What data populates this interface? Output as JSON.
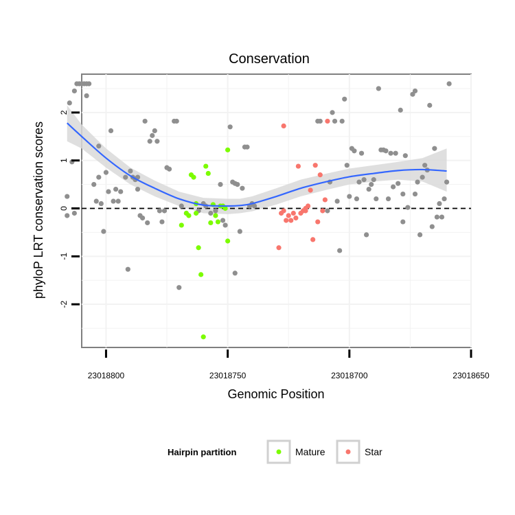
{
  "chart_data": {
    "type": "scatter",
    "title": "Conservation",
    "xlabel": "Genomic Position",
    "ylabel": "phyloP LRT conservation scores",
    "x_reversed": true,
    "xlim": [
      23018650,
      23018810
    ],
    "ylim": [
      -2.9,
      2.8
    ],
    "x_ticks": [
      23018800,
      23018750,
      23018700,
      23018650
    ],
    "x_tick_labels": [
      "23018800",
      "23018750",
      "23018700",
      "23018650"
    ],
    "y_ticks": [
      -2,
      -1,
      0,
      1,
      2
    ],
    "y_tick_labels": [
      "-2",
      "-1",
      "0",
      "1",
      "2"
    ],
    "reference_line": {
      "y": 0,
      "style": "dashed"
    },
    "grid": true,
    "legend": {
      "title": "Hairpin partition",
      "position": "bottom",
      "entries": [
        {
          "label": "Mature",
          "color": "#7cfc00"
        },
        {
          "label": "Star",
          "color": "#f8766d"
        }
      ]
    },
    "colors": {
      "other": "#8f8f8f",
      "Mature": "#7cfc00",
      "Star": "#f8766d",
      "smooth": "#3366ff",
      "ribbon": "#d9d9d9"
    },
    "series": [
      {
        "group": "other",
        "points": [
          [
            23018816,
            -0.15
          ],
          [
            23018816,
            0.25
          ],
          [
            23018815,
            2.2
          ],
          [
            23018814,
            0.97
          ],
          [
            23018813,
            2.45
          ],
          [
            23018813,
            -0.1
          ],
          [
            23018812,
            2.6
          ],
          [
            23018811,
            2.6
          ],
          [
            23018810,
            2.6
          ],
          [
            23018809,
            2.6
          ],
          [
            23018808,
            2.35
          ],
          [
            23018808,
            2.6
          ],
          [
            23018807,
            2.6
          ],
          [
            23018805,
            0.5
          ],
          [
            23018804,
            0.15
          ],
          [
            23018803,
            1.3
          ],
          [
            23018803,
            0.65
          ],
          [
            23018802,
            0.1
          ],
          [
            23018801,
            -0.48
          ],
          [
            23018800,
            0.75
          ],
          [
            23018799,
            0.35
          ],
          [
            23018798,
            1.62
          ],
          [
            23018797,
            0.15
          ],
          [
            23018796,
            0.4
          ],
          [
            23018795,
            0.15
          ],
          [
            23018794,
            0.35
          ],
          [
            23018792,
            0.65
          ],
          [
            23018791,
            -1.27
          ],
          [
            23018790,
            0.78
          ],
          [
            23018789,
            0.65
          ],
          [
            23018788,
            0.6
          ],
          [
            23018787,
            0.4
          ],
          [
            23018787,
            0.65
          ],
          [
            23018786,
            -0.15
          ],
          [
            23018785,
            -0.2
          ],
          [
            23018784,
            1.82
          ],
          [
            23018783,
            -0.3
          ],
          [
            23018782,
            1.4
          ],
          [
            23018781,
            1.52
          ],
          [
            23018780,
            1.62
          ],
          [
            23018779,
            1.4
          ],
          [
            23018778,
            -0.05
          ],
          [
            23018777,
            -0.28
          ],
          [
            23018776,
            -0.05
          ],
          [
            23018775,
            0.85
          ],
          [
            23018774,
            0.82
          ],
          [
            23018772,
            1.82
          ],
          [
            23018771,
            1.82
          ],
          [
            23018770,
            -1.65
          ],
          [
            23018769,
            0.05
          ],
          [
            23018767,
            -0.1
          ],
          [
            23018762,
            -0.05
          ],
          [
            23018760,
            0.1
          ],
          [
            23018759,
            0.05
          ],
          [
            23018757,
            -0.1
          ],
          [
            23018755,
            -0.05
          ],
          [
            23018753,
            0.5
          ],
          [
            23018752,
            -0.25
          ],
          [
            23018751,
            -0.35
          ],
          [
            23018749,
            1.7
          ],
          [
            23018748,
            0.55
          ],
          [
            23018747,
            -1.35
          ],
          [
            23018747,
            0.52
          ],
          [
            23018746,
            0.5
          ],
          [
            23018745,
            -0.48
          ],
          [
            23018744,
            0.42
          ],
          [
            23018743,
            1.28
          ],
          [
            23018742,
            1.28
          ],
          [
            23018741,
            0.05
          ],
          [
            23018740,
            0.1
          ],
          [
            23018739,
            0.05
          ],
          [
            23018713,
            1.82
          ],
          [
            23018712,
            1.82
          ],
          [
            23018709,
            -0.05
          ],
          [
            23018708,
            0.55
          ],
          [
            23018707,
            2.0
          ],
          [
            23018706,
            1.82
          ],
          [
            23018705,
            0.15
          ],
          [
            23018704,
            -0.88
          ],
          [
            23018703,
            1.82
          ],
          [
            23018702,
            2.28
          ],
          [
            23018701,
            0.9
          ],
          [
            23018700,
            0.25
          ],
          [
            23018699,
            1.25
          ],
          [
            23018698,
            1.2
          ],
          [
            23018697,
            0.2
          ],
          [
            23018696,
            0.55
          ],
          [
            23018695,
            1.15
          ],
          [
            23018694,
            0.6
          ],
          [
            23018693,
            -0.55
          ],
          [
            23018692,
            0.4
          ],
          [
            23018691,
            0.5
          ],
          [
            23018690,
            0.6
          ],
          [
            23018689,
            0.2
          ],
          [
            23018688,
            2.5
          ],
          [
            23018687,
            1.22
          ],
          [
            23018686,
            1.22
          ],
          [
            23018685,
            1.2
          ],
          [
            23018684,
            0.2
          ],
          [
            23018683,
            1.15
          ],
          [
            23018682,
            0.45
          ],
          [
            23018681,
            1.15
          ],
          [
            23018680,
            0.52
          ],
          [
            23018679,
            2.05
          ],
          [
            23018678,
            -0.28
          ],
          [
            23018678,
            0.3
          ],
          [
            23018677,
            1.1
          ],
          [
            23018676,
            0.02
          ],
          [
            23018674,
            2.38
          ],
          [
            23018673,
            2.45
          ],
          [
            23018673,
            0.3
          ],
          [
            23018672,
            0.55
          ],
          [
            23018671,
            -0.55
          ],
          [
            23018670,
            0.65
          ],
          [
            23018669,
            0.9
          ],
          [
            23018668,
            0.8
          ],
          [
            23018667,
            2.15
          ],
          [
            23018666,
            -0.38
          ],
          [
            23018665,
            1.25
          ],
          [
            23018664,
            -0.18
          ],
          [
            23018663,
            0.1
          ],
          [
            23018662,
            -0.18
          ],
          [
            23018661,
            0.2
          ],
          [
            23018660,
            0.55
          ],
          [
            23018659,
            2.6
          ]
        ]
      },
      {
        "group": "Mature",
        "points": [
          [
            23018769,
            -0.35
          ],
          [
            23018767,
            -0.1
          ],
          [
            23018766,
            -0.15
          ],
          [
            23018765,
            0.7
          ],
          [
            23018764,
            0.65
          ],
          [
            23018763,
            -0.1
          ],
          [
            23018763,
            0.1
          ],
          [
            23018762,
            -0.82
          ],
          [
            23018761,
            -1.38
          ],
          [
            23018760,
            -2.68
          ],
          [
            23018759,
            0.88
          ],
          [
            23018758,
            0.73
          ],
          [
            23018757,
            -0.3
          ],
          [
            23018756,
            0.08
          ],
          [
            23018755,
            -0.15
          ],
          [
            23018754,
            -0.28
          ],
          [
            23018753,
            0.05
          ],
          [
            23018752,
            0.05
          ],
          [
            23018751,
            0.0
          ],
          [
            23018750,
            -0.68
          ],
          [
            23018750,
            1.22
          ]
        ]
      },
      {
        "group": "Star",
        "points": [
          [
            23018729,
            -0.82
          ],
          [
            23018728,
            -0.1
          ],
          [
            23018727,
            -0.05
          ],
          [
            23018727,
            1.72
          ],
          [
            23018726,
            -0.25
          ],
          [
            23018725,
            -0.15
          ],
          [
            23018724,
            -0.25
          ],
          [
            23018723,
            -0.1
          ],
          [
            23018722,
            -0.2
          ],
          [
            23018721,
            0.88
          ],
          [
            23018720,
            -0.1
          ],
          [
            23018719,
            -0.05
          ],
          [
            23018718,
            -0.05
          ],
          [
            23018718,
            0.0
          ],
          [
            23018717,
            0.05
          ],
          [
            23018716,
            0.38
          ],
          [
            23018715,
            -0.65
          ],
          [
            23018714,
            0.9
          ],
          [
            23018713,
            -0.28
          ],
          [
            23018712,
            0.7
          ],
          [
            23018711,
            -0.05
          ],
          [
            23018710,
            0.18
          ],
          [
            23018709,
            1.82
          ]
        ]
      }
    ],
    "smooth_fit": {
      "method": "loess",
      "x": [
        23018816,
        23018810,
        23018800,
        23018790,
        23018780,
        23018770,
        23018760,
        23018750,
        23018745,
        23018740,
        23018730,
        23018720,
        23018710,
        23018700,
        23018690,
        23018680,
        23018670,
        23018660
      ],
      "y": [
        1.78,
        1.5,
        1.05,
        0.68,
        0.42,
        0.2,
        0.07,
        0.05,
        0.06,
        0.1,
        0.25,
        0.42,
        0.55,
        0.66,
        0.73,
        0.79,
        0.81,
        0.78
      ],
      "ci_upper": [
        2.15,
        1.75,
        1.25,
        0.85,
        0.58,
        0.35,
        0.22,
        0.2,
        0.2,
        0.25,
        0.42,
        0.6,
        0.72,
        0.83,
        0.9,
        0.97,
        1.05,
        1.25
      ],
      "ci_lower": [
        1.4,
        1.25,
        0.85,
        0.5,
        0.25,
        0.05,
        -0.1,
        -0.12,
        -0.1,
        -0.06,
        0.08,
        0.25,
        0.38,
        0.5,
        0.56,
        0.6,
        0.56,
        0.35
      ]
    }
  }
}
